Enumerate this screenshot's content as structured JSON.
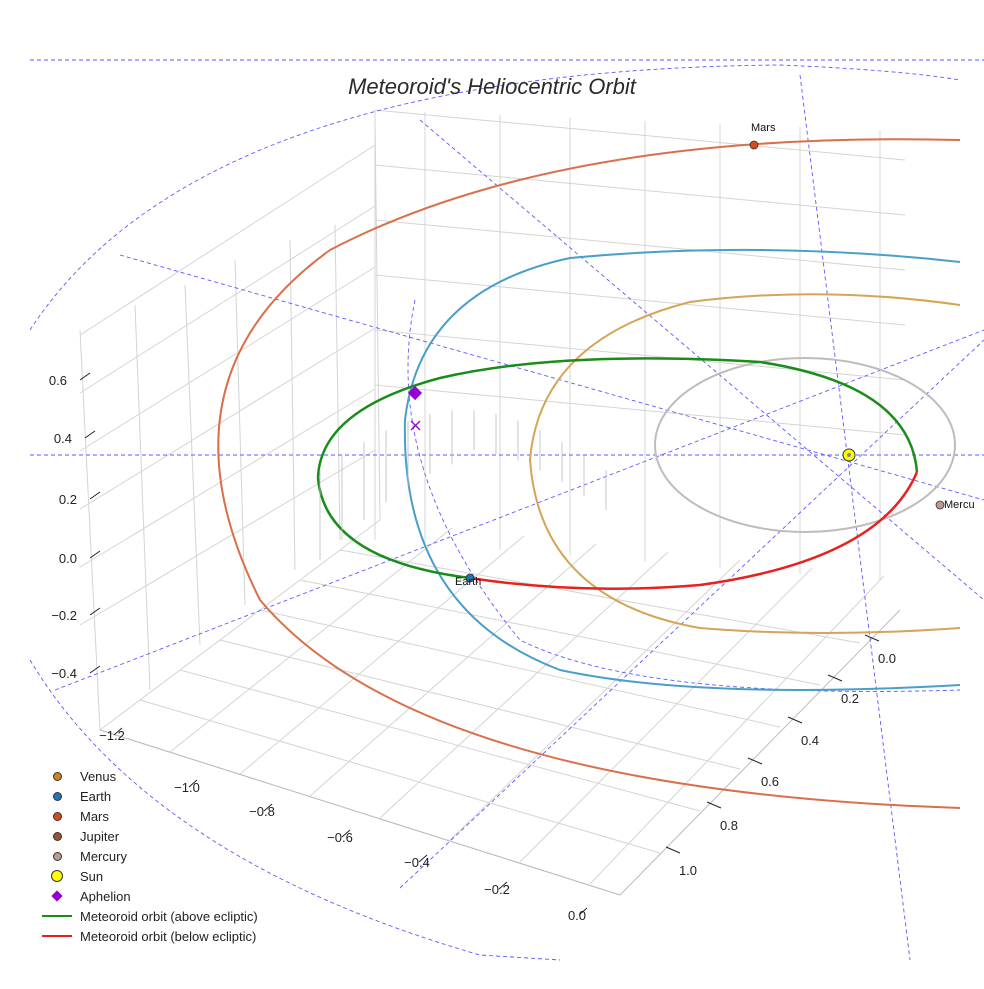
{
  "chart_data": {
    "type": "scatter",
    "title": "Meteoroid's Heliocentric Orbit",
    "z_ticks": [
      "0.6",
      "0.4",
      "0.2",
      "0.0",
      "−0.2",
      "−0.4"
    ],
    "x_ticks": [
      "−1.2",
      "−1.0",
      "−0.8",
      "−0.6",
      "−0.4",
      "−0.2",
      "0.0"
    ],
    "y_ticks": [
      "0.0",
      "0.2",
      "0.4",
      "0.6",
      "0.8",
      "1.0"
    ],
    "planets": [
      {
        "name": "Venus",
        "label": "",
        "color": "#d2801a"
      },
      {
        "name": "Earth",
        "label": "Earth",
        "color": "#1f77b4"
      },
      {
        "name": "Mars",
        "label": "Mars",
        "color": "#d64a1e"
      },
      {
        "name": "Jupiter",
        "label": "",
        "color": "#a0522d"
      },
      {
        "name": "Mercury",
        "label": "Mercu",
        "color": "#bc9a90"
      }
    ],
    "orbit_colors": {
      "Mars": "#d9704a",
      "Earth": "#4a9fca",
      "Venus": "#d4a555",
      "Mercury": "#bfbcbb"
    },
    "meteoroid": {
      "above_color": "#1a8c1a",
      "below_color": "#e8211e"
    },
    "legend": [
      {
        "label": "Venus",
        "kind": "dot",
        "color": "#d2801a"
      },
      {
        "label": "Earth",
        "kind": "dot",
        "color": "#1f77b4"
      },
      {
        "label": "Mars",
        "kind": "dot",
        "color": "#d64a1e"
      },
      {
        "label": "Jupiter",
        "kind": "dot",
        "color": "#a0522d"
      },
      {
        "label": "Mercury",
        "kind": "dot",
        "color": "#bc9a90"
      },
      {
        "label": "Sun",
        "kind": "sun",
        "color": "#ffff00"
      },
      {
        "label": "Aphelion",
        "kind": "diamond",
        "color": "#9400d3"
      },
      {
        "label": "Meteoroid orbit (above ecliptic)",
        "kind": "line",
        "color": "#1a8c1a"
      },
      {
        "label": "Meteoroid orbit (below ecliptic)",
        "kind": "line",
        "color": "#e8211e"
      }
    ],
    "grid": true,
    "legend_position": "bottom-left"
  }
}
